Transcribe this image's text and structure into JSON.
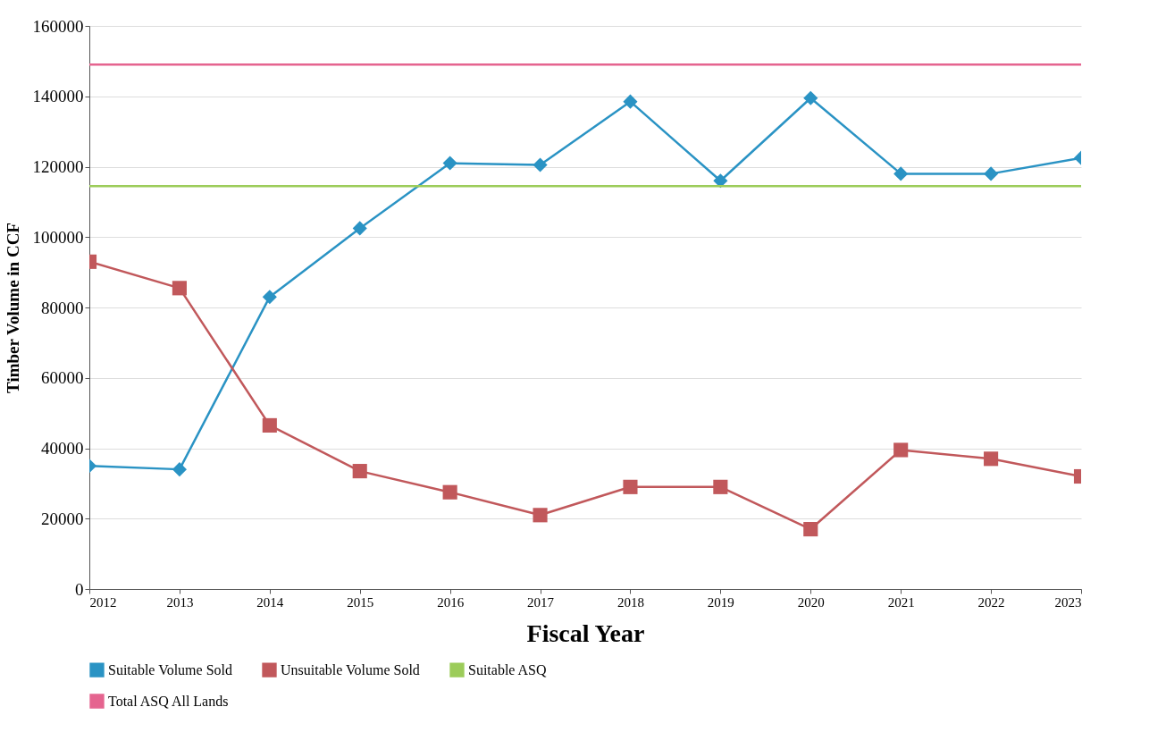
{
  "chart_data": {
    "type": "line",
    "xlabel": "Fiscal Year",
    "ylabel": "Timber Volume in CCF",
    "x": [
      2012,
      2013,
      2014,
      2015,
      2016,
      2017,
      2018,
      2019,
      2020,
      2021,
      2022,
      2023
    ],
    "series": [
      {
        "name": "Suitable Volume Sold",
        "color": "#2a93c4",
        "marker": "diamond",
        "values": [
          35000,
          34000,
          83000,
          102500,
          121000,
          120500,
          138500,
          116000,
          139500,
          118000,
          118000,
          122500
        ]
      },
      {
        "name": "Unsuitable Volume Sold",
        "color": "#c1585b",
        "marker": "square",
        "values": [
          93000,
          85500,
          46500,
          33500,
          27500,
          21000,
          29000,
          29000,
          17000,
          39500,
          37000,
          32000
        ]
      },
      {
        "name": "Suitable ASQ",
        "color": "#9ccc5a",
        "marker": "none",
        "values": [
          114500,
          114500,
          114500,
          114500,
          114500,
          114500,
          114500,
          114500,
          114500,
          114500,
          114500,
          114500
        ]
      },
      {
        "name": "Total ASQ All Lands",
        "color": "#e5648f",
        "marker": "none",
        "values": [
          149000,
          149000,
          149000,
          149000,
          149000,
          149000,
          149000,
          149000,
          149000,
          149000,
          149000,
          149000
        ]
      }
    ],
    "xlim": [
      2012,
      2023
    ],
    "xticks": [
      2012,
      2013,
      2014,
      2015,
      2016,
      2017,
      2018,
      2019,
      2020,
      2021,
      2022,
      2023
    ],
    "ylim": [
      0,
      160000
    ],
    "yticks": [
      0,
      20000,
      40000,
      60000,
      80000,
      100000,
      120000,
      140000,
      160000
    ],
    "grid": "y",
    "legend": "bottom"
  }
}
